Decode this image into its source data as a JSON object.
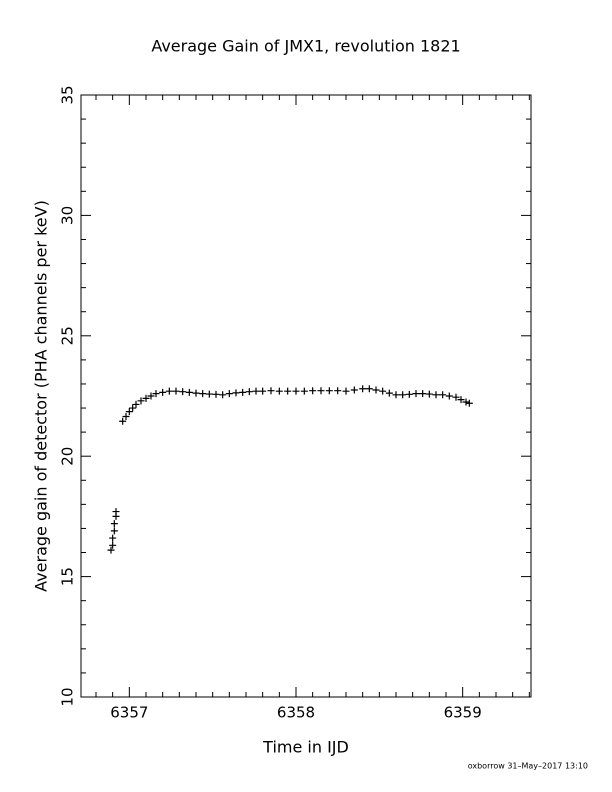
{
  "chart_data": {
    "type": "scatter",
    "title": "Average Gain of JMX1, revolution 1821",
    "xlabel": "Time in IJD",
    "ylabel": "Average gain of detector (PHA channels per keV)",
    "footer": "oxborrow 31–May–2017 13:10",
    "color": "#000000",
    "xlim": [
      6356.71,
      6359.41
    ],
    "ylim": [
      10,
      35
    ],
    "xticks": [
      6357,
      6358,
      6359
    ],
    "yticks": [
      10,
      15,
      20,
      25,
      30,
      35
    ],
    "xminorticks": [
      6356.8,
      6356.9,
      6357.1,
      6357.2,
      6357.3,
      6357.4,
      6357.5,
      6357.6,
      6357.7,
      6357.8,
      6357.9,
      6358.1,
      6358.2,
      6358.3,
      6358.4,
      6358.5,
      6358.6,
      6358.7,
      6358.8,
      6358.9,
      6359.1,
      6359.2,
      6359.3,
      6359.4
    ],
    "yminorticks": [
      11,
      12,
      13,
      14,
      16,
      17,
      18,
      19,
      21,
      22,
      23,
      24,
      26,
      27,
      28,
      29,
      31,
      32,
      33,
      34
    ],
    "x": [
      6356.89,
      6356.9,
      6356.9,
      6356.91,
      6356.91,
      6356.92,
      6356.92,
      6356.96,
      6356.98,
      6357.0,
      6357.02,
      6357.04,
      6357.07,
      6357.1,
      6357.13,
      6357.16,
      6357.2,
      6357.24,
      6357.28,
      6357.32,
      6357.36,
      6357.4,
      6357.44,
      6357.48,
      6357.52,
      6357.56,
      6357.6,
      6357.64,
      6357.68,
      6357.72,
      6357.76,
      6357.8,
      6357.85,
      6357.9,
      6357.95,
      6358.0,
      6358.05,
      6358.1,
      6358.15,
      6358.2,
      6358.25,
      6358.3,
      6358.35,
      6358.4,
      6358.44,
      6358.48,
      6358.52,
      6358.56,
      6358.6,
      6358.64,
      6358.68,
      6358.72,
      6358.76,
      6358.8,
      6358.84,
      6358.88,
      6358.92,
      6358.96,
      6358.99,
      6359.02,
      6359.04
    ],
    "values": [
      16.1,
      16.3,
      16.6,
      16.9,
      17.2,
      17.5,
      17.7,
      21.45,
      21.65,
      21.85,
      22.0,
      22.15,
      22.3,
      22.4,
      22.5,
      22.6,
      22.65,
      22.7,
      22.7,
      22.68,
      22.65,
      22.62,
      22.6,
      22.58,
      22.57,
      22.55,
      22.6,
      22.63,
      22.65,
      22.68,
      22.7,
      22.7,
      22.72,
      22.7,
      22.7,
      22.7,
      22.7,
      22.72,
      22.72,
      22.72,
      22.72,
      22.7,
      22.75,
      22.8,
      22.8,
      22.75,
      22.7,
      22.62,
      22.55,
      22.55,
      22.57,
      22.6,
      22.6,
      22.58,
      22.55,
      22.55,
      22.5,
      22.45,
      22.35,
      22.25,
      22.2
    ]
  }
}
